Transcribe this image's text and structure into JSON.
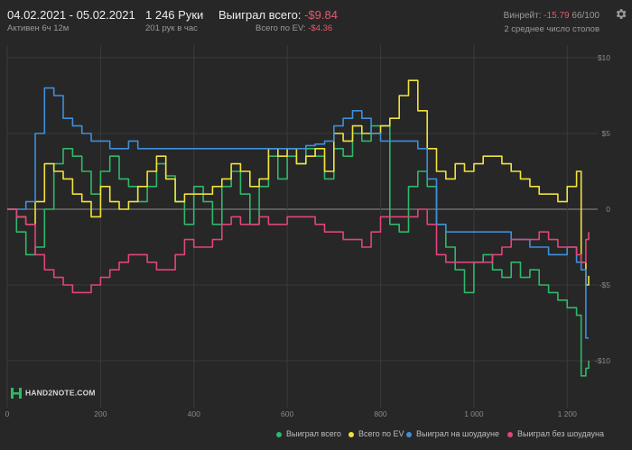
{
  "header": {
    "date_range": "04.02.2021 - 05.02.2021",
    "active_time": "Активен 6ч 12м",
    "hands": "1 246 Руки",
    "hands_per_hour": "201 рук в час",
    "won_total_label": "Выиграл всего:",
    "won_total_value": "-$9.84",
    "ev_total_label": "Всего по EV:",
    "ev_total_value": "-$4.36",
    "winrate_label": "Винрейт:",
    "winrate_value": "-15.79",
    "winrate_suffix": "66/100",
    "avg_tables": "2 среднее число столов"
  },
  "logo": {
    "text": "HAND2NOTE.COM"
  },
  "icons": {
    "settings": "gear-icon",
    "logo": "hand2note-logo-icon"
  },
  "colors": {
    "background": "#272727",
    "grid": "#3a3a3a",
    "zero_line": "#8c8c8c",
    "negative": "#e4596e",
    "won_total": "#2fb86a",
    "ev_total": "#f0e23b",
    "showdown": "#3d8fdc",
    "non_showdown": "#e0457a"
  },
  "chart_data": {
    "type": "line",
    "title": "",
    "xlabel": "",
    "ylabel": "",
    "xlim": [
      0,
      1246
    ],
    "ylim": [
      -13,
      10
    ],
    "x_ticks": [
      0,
      200,
      400,
      600,
      800,
      1000,
      1200
    ],
    "x_tick_labels": [
      "0",
      "200",
      "400",
      "600",
      "800",
      "1 000",
      "1 200"
    ],
    "y_ticks": [
      10,
      5,
      0,
      -5,
      -10
    ],
    "y_tick_labels": [
      "$10",
      "$5",
      "0",
      "-$5",
      "-$10"
    ],
    "grid": true,
    "legend_position": "bottom-right",
    "series": [
      {
        "name": "Выиграл всего",
        "color": "#2fb86a",
        "x": [
          0,
          20,
          40,
          60,
          80,
          100,
          120,
          140,
          160,
          180,
          200,
          220,
          240,
          260,
          280,
          300,
          320,
          340,
          360,
          380,
          400,
          420,
          440,
          460,
          480,
          500,
          520,
          540,
          560,
          580,
          600,
          620,
          640,
          660,
          680,
          700,
          720,
          740,
          760,
          780,
          800,
          820,
          840,
          860,
          880,
          900,
          920,
          940,
          960,
          980,
          1000,
          1020,
          1040,
          1060,
          1080,
          1100,
          1120,
          1140,
          1160,
          1180,
          1200,
          1220,
          1230,
          1240,
          1246
        ],
        "y": [
          0,
          -1.5,
          -3,
          -2.5,
          0,
          3,
          4,
          3.5,
          2.5,
          1,
          2.5,
          3.5,
          2,
          1.5,
          0.5,
          1.5,
          3,
          2.2,
          0.5,
          -1,
          1.5,
          0.5,
          -1,
          1.5,
          2.5,
          1,
          -1,
          1.5,
          3.5,
          2,
          3.5,
          3,
          4,
          3.5,
          2,
          4,
          3.5,
          5,
          4.5,
          5.5,
          5.5,
          -1,
          -1.5,
          1.5,
          2.5,
          1.5,
          -1,
          -2.5,
          -4,
          -5.5,
          -3.5,
          -3,
          -4,
          -4.5,
          -3.5,
          -4.5,
          -4,
          -5,
          -5.5,
          -6,
          -6.5,
          -7,
          -11,
          -10.5,
          -10
        ]
      },
      {
        "name": "Всего по EV",
        "color": "#f0e23b",
        "x": [
          0,
          20,
          40,
          60,
          80,
          100,
          120,
          140,
          160,
          180,
          200,
          220,
          240,
          260,
          280,
          300,
          320,
          340,
          360,
          380,
          400,
          420,
          440,
          460,
          480,
          500,
          520,
          540,
          560,
          580,
          600,
          620,
          640,
          660,
          680,
          700,
          720,
          740,
          760,
          780,
          800,
          820,
          840,
          860,
          880,
          900,
          920,
          940,
          960,
          980,
          1000,
          1020,
          1040,
          1060,
          1080,
          1100,
          1120,
          1140,
          1160,
          1180,
          1200,
          1220,
          1230,
          1240,
          1246
        ],
        "y": [
          0,
          -0.5,
          -1,
          0.5,
          3,
          2.5,
          2,
          1,
          0.5,
          -0.5,
          1.5,
          0.5,
          0,
          0.5,
          1.5,
          2.5,
          3.5,
          2,
          0.5,
          1,
          1,
          1,
          1.5,
          2,
          3,
          2.5,
          1.5,
          2,
          4,
          3.5,
          4,
          3,
          3.5,
          4,
          2.5,
          5,
          4.5,
          5.5,
          5,
          5,
          5.5,
          6,
          7.5,
          8.5,
          6.5,
          4,
          2.5,
          2,
          3,
          2.5,
          3,
          3.5,
          3.5,
          3,
          2.5,
          2,
          1.5,
          1,
          1,
          0.5,
          1.5,
          2.5,
          -3.5,
          -5,
          -4.4
        ]
      },
      {
        "name": "Выиграл на шоудауне",
        "color": "#3d8fdc",
        "x": [
          0,
          20,
          40,
          60,
          80,
          100,
          120,
          140,
          160,
          180,
          200,
          220,
          240,
          260,
          280,
          300,
          320,
          340,
          360,
          380,
          400,
          420,
          440,
          460,
          480,
          500,
          520,
          540,
          560,
          580,
          600,
          620,
          640,
          660,
          680,
          700,
          720,
          740,
          760,
          780,
          800,
          820,
          840,
          860,
          880,
          900,
          920,
          940,
          960,
          980,
          1000,
          1020,
          1040,
          1060,
          1080,
          1100,
          1120,
          1140,
          1160,
          1180,
          1200,
          1220,
          1230,
          1240,
          1246
        ],
        "y": [
          0,
          0,
          0.5,
          5,
          8,
          7.5,
          6,
          5.5,
          5,
          4.5,
          4.5,
          4,
          4,
          4.5,
          4,
          4,
          4,
          4,
          4,
          4,
          4,
          4,
          4,
          4,
          4,
          4,
          4,
          4,
          4,
          4,
          4,
          4,
          4.2,
          4.3,
          4.5,
          5.5,
          6,
          6.5,
          6,
          5,
          4.5,
          4.5,
          4.5,
          4.5,
          4,
          2,
          -1,
          -1.5,
          -1.5,
          -1.5,
          -1.5,
          -1.5,
          -1.5,
          -1.5,
          -2,
          -2,
          -2.5,
          -2.5,
          -3,
          -3,
          -2.5,
          -3.5,
          -4,
          -8.5,
          -8.5
        ]
      },
      {
        "name": "Выиграл без шоудауна",
        "color": "#e0457a",
        "x": [
          0,
          20,
          40,
          60,
          80,
          100,
          120,
          140,
          160,
          180,
          200,
          220,
          240,
          260,
          280,
          300,
          320,
          340,
          360,
          380,
          400,
          420,
          440,
          460,
          480,
          500,
          520,
          540,
          560,
          580,
          600,
          620,
          640,
          660,
          680,
          700,
          720,
          740,
          760,
          780,
          800,
          820,
          840,
          860,
          880,
          900,
          920,
          940,
          960,
          980,
          1000,
          1020,
          1040,
          1060,
          1080,
          1100,
          1120,
          1140,
          1160,
          1180,
          1200,
          1220,
          1230,
          1240,
          1246
        ],
        "y": [
          0,
          -0.5,
          -1,
          -3,
          -4,
          -4.5,
          -5,
          -5.5,
          -5.5,
          -5,
          -4.5,
          -4,
          -3.5,
          -3,
          -3,
          -3.5,
          -4,
          -4,
          -3,
          -2,
          -2.5,
          -2.5,
          -2,
          -1,
          -0.5,
          -1,
          -1,
          -0.5,
          -1,
          -1,
          -0.5,
          -0.5,
          -0.5,
          -1,
          -1.5,
          -1.5,
          -2,
          -2,
          -2.5,
          -1.5,
          -0.5,
          -0.5,
          -0.5,
          -0.5,
          0,
          -1,
          -3,
          -3.5,
          -3.5,
          -3.5,
          -3.5,
          -3.5,
          -3,
          -2.5,
          -2,
          -2,
          -2,
          -1.5,
          -2,
          -2.5,
          -2.5,
          -3,
          -3.5,
          -2,
          -1.5
        ]
      }
    ]
  }
}
